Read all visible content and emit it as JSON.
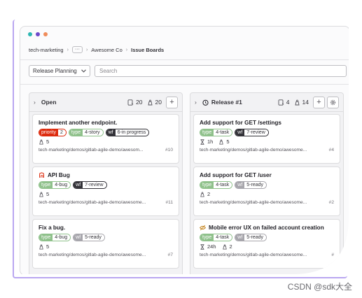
{
  "colors": {
    "accent_purple": "#b9a6f0",
    "dot_teal": "#2eb7b3",
    "dot_purple": "#6e49cb",
    "dot_orange": "#f08c5a",
    "priority_red": "#dd2b0e",
    "type_green": "#8fc18b",
    "wf_dark": "#333238",
    "wf_gray": "#a7a6ac"
  },
  "breadcrumb": {
    "group": "tech-marketing",
    "more": "···",
    "org": "Awesome Co",
    "current": "Issue Boards"
  },
  "filters": {
    "board_select": "Release Planning",
    "search_placeholder": "Search"
  },
  "columns": [
    {
      "title": "Open",
      "issue_count": "20",
      "weight_total": "20",
      "cards": [
        {
          "title": "Implement another endpoint.",
          "labels": [
            {
              "key": "priority",
              "value": "2",
              "color": "#dd2b0e"
            },
            {
              "key": "type",
              "value": "4-story",
              "color": "#8fc18b"
            },
            {
              "key": "wf",
              "value": "6-in progress",
              "color": "#333238"
            }
          ],
          "weight": "5",
          "path": "tech-marketing/demos/gitlab-agile-demo/awesom...",
          "ref": "#10"
        },
        {
          "title": "API Bug",
          "labels": [
            {
              "key": "type",
              "value": "4-bug",
              "color": "#8fc18b"
            },
            {
              "key": "wf",
              "value": "7-review",
              "color": "#333238"
            }
          ],
          "weight": "5",
          "path": "tech-marketing/demos/gitlab-agile-demo/awesome...",
          "ref": "#11"
        },
        {
          "title": "Fix a bug.",
          "labels": [
            {
              "key": "type",
              "value": "4-bug",
              "color": "#8fc18b"
            },
            {
              "key": "wf",
              "value": "5-ready",
              "color": "#a7a6ac"
            }
          ],
          "weight": "5",
          "path": "tech-marketing/demos/gitlab-agile-demo/awesome...",
          "ref": "#7"
        }
      ]
    },
    {
      "title": "Release #1",
      "issue_count": "4",
      "weight_total": "14",
      "cards": [
        {
          "title": "Add support for GET /settings",
          "labels": [
            {
              "key": "type",
              "value": "4-task",
              "color": "#8fc18b"
            },
            {
              "key": "wf",
              "value": "7-review",
              "color": "#333238"
            }
          ],
          "time": "1h",
          "weight": "5",
          "path": "tech-marketing/demos/gitlab-agile-demo/awesome...",
          "ref": "#4"
        },
        {
          "title": "Add support for GET /user",
          "labels": [
            {
              "key": "type",
              "value": "4-task",
              "color": "#8fc18b"
            },
            {
              "key": "wf",
              "value": "5-ready",
              "color": "#a7a6ac"
            }
          ],
          "weight": "2",
          "path": "tech-marketing/demos/gitlab-agile-demo/awesome...",
          "ref": "#2"
        },
        {
          "title": "Mobile error UX on failed account creation",
          "labels": [
            {
              "key": "type",
              "value": "4-task",
              "color": "#8fc18b"
            },
            {
              "key": "wf",
              "value": "5-ready",
              "color": "#a7a6ac"
            }
          ],
          "time": "24h",
          "weight": "2",
          "path": "tech-marketing/demos/gitlab-agile-demo/awesome...",
          "ref": "#"
        }
      ]
    }
  ],
  "watermark": "CSDN @sdk大全"
}
